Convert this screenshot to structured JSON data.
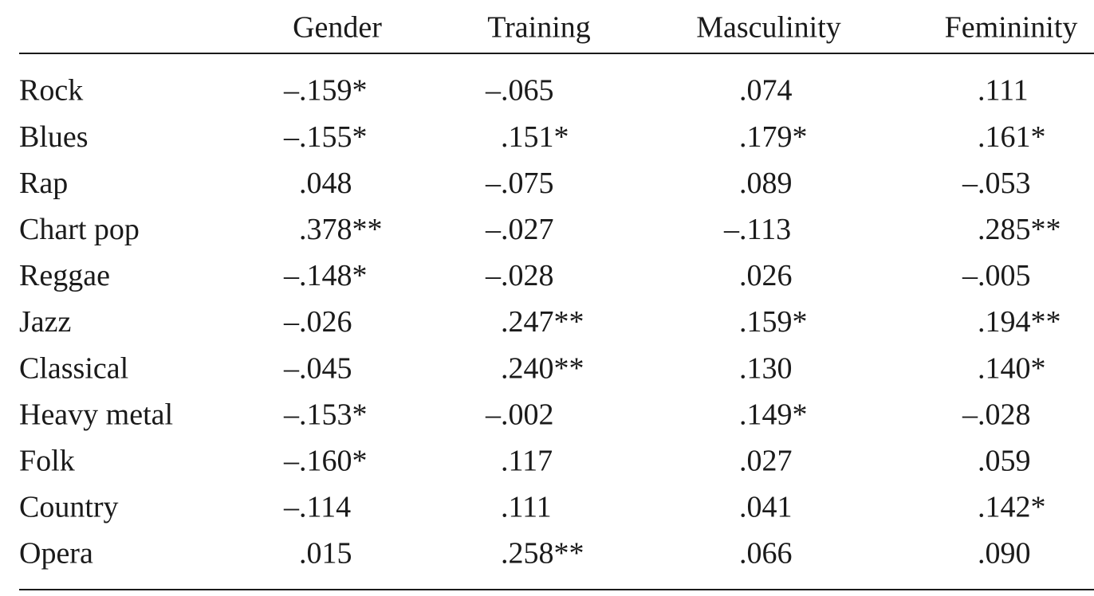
{
  "table": {
    "columns": [
      "Gender",
      "Training",
      "Masculinity",
      "Femininity"
    ],
    "rows": [
      [
        "Rock",
        "–.159*",
        "–.065",
        ".074",
        ".111"
      ],
      [
        "Blues",
        "–.155*",
        ".151*",
        ".179*",
        ".161*"
      ],
      [
        "Rap",
        ".048",
        "–.075",
        ".089",
        "–.053"
      ],
      [
        "Chart pop",
        ".378**",
        "–.027",
        "–.113",
        ".285**"
      ],
      [
        "Reggae",
        "–.148*",
        "–.028",
        ".026",
        "–.005"
      ],
      [
        "Jazz",
        "–.026",
        ".247**",
        ".159*",
        ".194**"
      ],
      [
        "Classical",
        "–.045",
        ".240**",
        ".130",
        ".140*"
      ],
      [
        "Heavy metal",
        "–.153*",
        "–.002",
        ".149*",
        "–.028"
      ],
      [
        "Folk",
        "–.160*",
        ".117",
        ".027",
        ".059"
      ],
      [
        "Country",
        "–.114",
        ".111",
        ".041",
        ".142*"
      ],
      [
        "Opera",
        ".015",
        ".258**",
        ".066",
        ".090"
      ]
    ]
  }
}
